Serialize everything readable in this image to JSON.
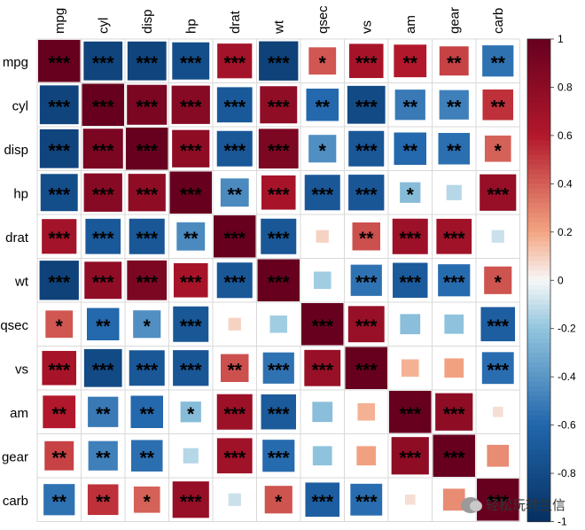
{
  "chart_data": {
    "type": "heatmap",
    "variables": [
      "mpg",
      "cyl",
      "disp",
      "hp",
      "drat",
      "wt",
      "qsec",
      "vs",
      "am",
      "gear",
      "carb"
    ],
    "correlation_matrix": [
      [
        1.0,
        -0.85,
        -0.85,
        -0.78,
        0.68,
        -0.87,
        0.42,
        0.66,
        0.6,
        0.48,
        -0.55
      ],
      [
        -0.85,
        1.0,
        0.9,
        0.83,
        -0.7,
        0.78,
        -0.59,
        -0.81,
        -0.52,
        -0.49,
        0.53
      ],
      [
        -0.85,
        0.9,
        1.0,
        0.79,
        -0.71,
        0.89,
        -0.43,
        -0.71,
        -0.59,
        -0.56,
        0.39
      ],
      [
        -0.78,
        0.83,
        0.79,
        1.0,
        -0.45,
        0.66,
        -0.71,
        -0.72,
        -0.24,
        -0.13,
        0.75
      ],
      [
        0.68,
        -0.7,
        -0.71,
        -0.45,
        1.0,
        -0.71,
        0.09,
        0.44,
        0.71,
        0.7,
        -0.09
      ],
      [
        -0.87,
        0.78,
        0.89,
        0.66,
        -0.71,
        1.0,
        -0.17,
        -0.55,
        -0.69,
        -0.58,
        0.43
      ],
      [
        0.42,
        -0.59,
        -0.43,
        -0.71,
        0.09,
        -0.17,
        1.0,
        0.74,
        -0.23,
        -0.21,
        -0.66
      ],
      [
        0.66,
        -0.81,
        -0.71,
        -0.72,
        0.44,
        -0.55,
        0.74,
        1.0,
        0.17,
        0.21,
        -0.57
      ],
      [
        0.6,
        -0.52,
        -0.59,
        -0.24,
        0.71,
        -0.69,
        -0.23,
        0.17,
        1.0,
        0.79,
        0.06
      ],
      [
        0.48,
        -0.49,
        -0.56,
        -0.13,
        0.7,
        -0.58,
        -0.21,
        0.21,
        0.79,
        1.0,
        0.27
      ],
      [
        -0.55,
        0.53,
        0.39,
        0.75,
        -0.09,
        0.43,
        -0.66,
        -0.57,
        0.06,
        0.27,
        1.0
      ]
    ],
    "significance": [
      [
        "***",
        "***",
        "***",
        "***",
        "***",
        "***",
        "*",
        "***",
        "**",
        "**",
        "**"
      ],
      [
        "***",
        "***",
        "***",
        "***",
        "***",
        "***",
        "**",
        "***",
        "**",
        "**",
        "**"
      ],
      [
        "***",
        "***",
        "***",
        "***",
        "***",
        "***",
        "*",
        "***",
        "**",
        "**",
        "*"
      ],
      [
        "***",
        "***",
        "***",
        "***",
        "**",
        "***",
        "***",
        "***",
        "*",
        "",
        "***"
      ],
      [
        "***",
        "***",
        "***",
        "**",
        "***",
        "***",
        "",
        "**",
        "***",
        "***",
        ""
      ],
      [
        "***",
        "***",
        "***",
        "***",
        "***",
        "***",
        "",
        "***",
        "***",
        "***",
        "*"
      ],
      [
        "*",
        "**",
        "*",
        "***",
        "",
        "",
        "***",
        "***",
        "",
        "",
        "***"
      ],
      [
        "***",
        "***",
        "***",
        "***",
        "**",
        "***",
        "***",
        "***",
        "",
        "",
        "***"
      ],
      [
        "**",
        "**",
        "**",
        "*",
        "***",
        "***",
        "",
        "",
        "***",
        "***",
        ""
      ],
      [
        "**",
        "**",
        "**",
        "",
        "***",
        "***",
        "",
        "",
        "***",
        "***",
        ""
      ],
      [
        "**",
        "**",
        "*",
        "***",
        "",
        "*",
        "***",
        "***",
        "",
        "",
        "***"
      ]
    ],
    "colorbar": {
      "min": -1,
      "max": 1,
      "ticks": [
        "1",
        "0.8",
        "0.6",
        "0.4",
        "0.2",
        "0",
        "-0.2",
        "-0.4",
        "-0.6",
        "-0.8",
        "-1"
      ],
      "colors": {
        "negative_strong": "#053061",
        "negative_mid": "#2166ac",
        "negative_light": "#92c5de",
        "neutral": "#f7f7f7",
        "positive_light": "#f4a582",
        "positive_mid": "#b2182b",
        "positive_strong": "#67001f"
      }
    },
    "grid": true,
    "legend": "right"
  },
  "watermark": {
    "text": "轻松玩转生信",
    "icon": "wechat-icon"
  }
}
